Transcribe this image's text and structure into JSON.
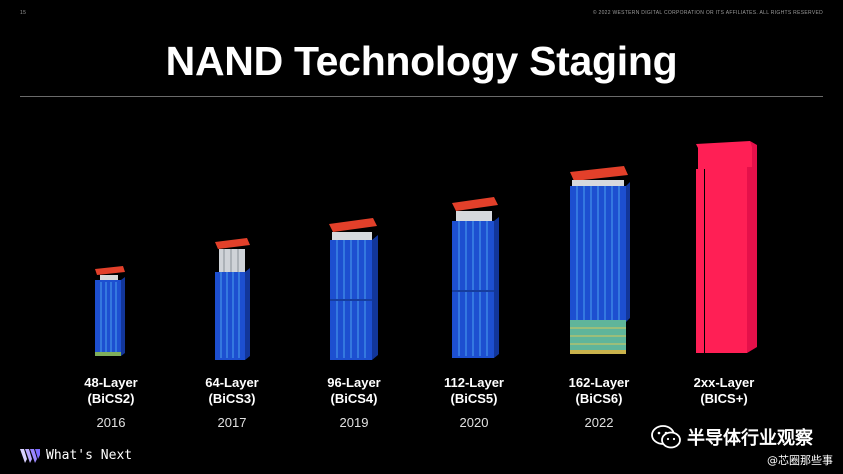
{
  "header": {
    "page_number": "15",
    "copyright": "© 2022 WESTERN DIGITAL CORPORATION OR ITS AFFILIATES. ALL RIGHTS RESERVED"
  },
  "title": "NAND Technology Staging",
  "generations": [
    {
      "layer": "48-Layer",
      "bics": "(BiCS2)",
      "year": "2016"
    },
    {
      "layer": "64-Layer",
      "bics": "(BiCS3)",
      "year": "2017"
    },
    {
      "layer": "96-Layer",
      "bics": "(BiCS4)",
      "year": "2019"
    },
    {
      "layer": "112-Layer",
      "bics": "(BiCS5)",
      "year": "2020"
    },
    {
      "layer": "162-Layer",
      "bics": "(BiCS6)",
      "year": "2022"
    },
    {
      "layer": "2xx-Layer",
      "bics": "(BICS+)",
      "year": ""
    }
  ],
  "footer": {
    "brand": "What's Next",
    "watermark": "半导体行业观察",
    "watermark_sub": "@芯圈那些事"
  },
  "colors": {
    "stack_blue": "#1d4fd0",
    "stack_stripe": "#3f8ae6",
    "cap_red": "#e2402a",
    "future_pink": "#ff1f55"
  }
}
